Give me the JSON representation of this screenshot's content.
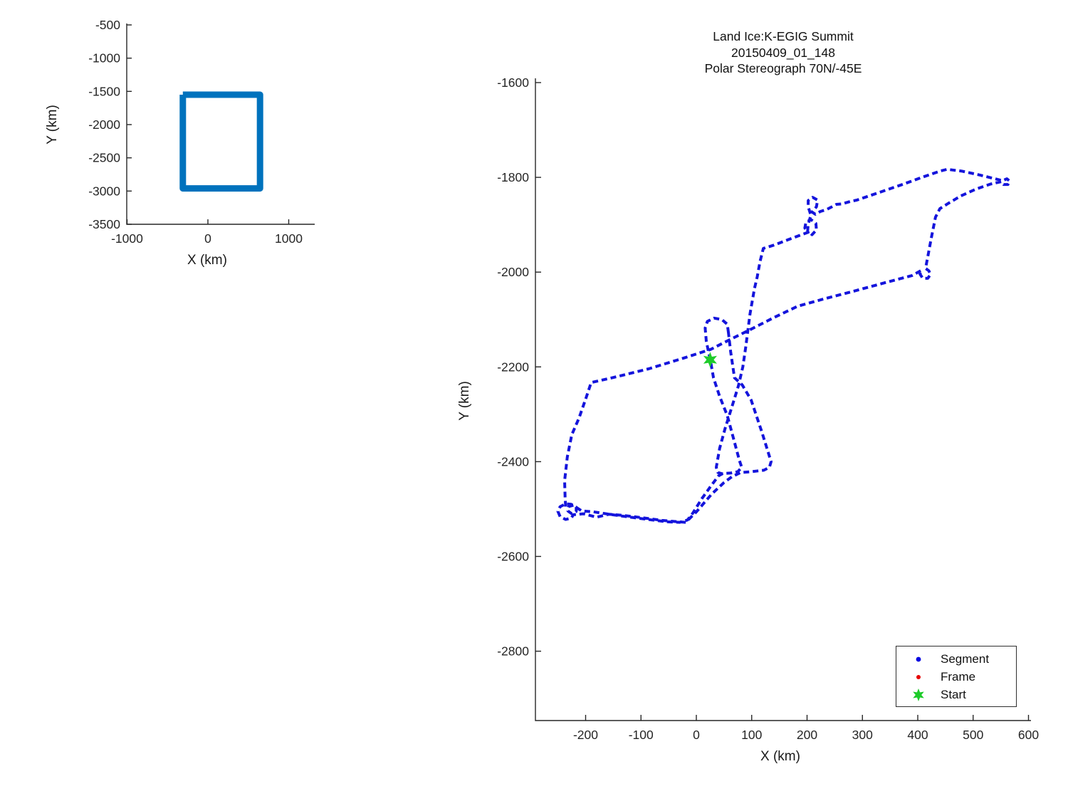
{
  "figure": {
    "background": "#ffffff"
  },
  "chart_data": [
    {
      "type": "line",
      "role": "overview-map",
      "xlabel": "X (km)",
      "ylabel": "Y (km)",
      "xticks": [
        -1000,
        0,
        1000
      ],
      "yticks": [
        -500,
        -1000,
        -1500,
        -2000,
        -2500,
        -3000,
        -3500
      ],
      "xlim": [
        -1010,
        1320
      ],
      "ylim": [
        -3500,
        -500
      ],
      "grid": false,
      "series": [
        {
          "name": "flight-region-outline",
          "color": "#0072BD",
          "linewidth": 9,
          "dash": "none",
          "points": [
            [
              -310,
              -1550
            ],
            [
              645,
              -1550
            ],
            [
              645,
              -2960
            ],
            [
              -310,
              -2960
            ],
            [
              -310,
              -1550
            ]
          ]
        }
      ]
    },
    {
      "type": "line",
      "role": "flight-track",
      "title_lines": [
        "Land Ice:K-EGIG Summit",
        "20150409_01_148",
        "Polar Stereograph 70N/-45E"
      ],
      "xlabel": "X (km)",
      "ylabel": "Y (km)",
      "xticks": [
        -200,
        -100,
        0,
        100,
        200,
        300,
        400,
        500,
        600
      ],
      "yticks": [
        -1600,
        -1800,
        -2000,
        -2200,
        -2400,
        -2600,
        -2800
      ],
      "xlim": [
        -291,
        605
      ],
      "ylim": [
        -2947,
        -1591
      ],
      "grid": false,
      "legend": {
        "position": "lower right",
        "entries": [
          {
            "label": "Segment",
            "marker": "dot",
            "color": "#0000e1"
          },
          {
            "label": "Frame",
            "marker": "dot",
            "color": "#e60000"
          },
          {
            "label": "Start",
            "marker": "hexagram",
            "color": "#1ecb2a"
          }
        ]
      },
      "start_point": [
        25,
        -2185
      ],
      "track_color": "#1414dc",
      "series": [
        {
          "name": "segment-track-survey-and-southwest-loop",
          "color": "#1414dc",
          "linewidth": 4,
          "dash": "8 5",
          "points": [
            [
              58,
              -2128
            ],
            [
              56,
              -2110
            ],
            [
              46,
              -2100
            ],
            [
              32,
              -2097
            ],
            [
              20,
              -2104
            ],
            [
              16,
              -2118
            ],
            [
              18,
              -2146
            ],
            [
              22,
              -2168
            ],
            [
              26,
              -2190
            ],
            [
              31,
              -2223
            ],
            [
              42,
              -2262
            ],
            [
              56,
              -2303
            ],
            [
              68,
              -2355
            ],
            [
              78,
              -2398
            ],
            [
              82,
              -2412
            ],
            [
              75,
              -2421
            ],
            [
              62,
              -2424
            ],
            [
              48,
              -2425
            ],
            [
              40,
              -2430
            ],
            [
              26,
              -2452
            ],
            [
              10,
              -2478
            ],
            [
              -6,
              -2508
            ],
            [
              -16,
              -2523
            ],
            [
              -30,
              -2528
            ],
            [
              -52,
              -2527
            ],
            [
              -80,
              -2523
            ],
            [
              -114,
              -2518
            ],
            [
              -152,
              -2512
            ],
            [
              -186,
              -2506
            ],
            [
              -207,
              -2504
            ],
            [
              -215,
              -2498
            ],
            [
              -222,
              -2492
            ],
            [
              -231,
              -2495
            ],
            [
              -232,
              -2504
            ],
            [
              -225,
              -2510
            ],
            [
              -217,
              -2505
            ],
            [
              -217,
              -2496
            ],
            [
              -226,
              -2490
            ],
            [
              -236,
              -2489
            ],
            [
              -246,
              -2495
            ],
            [
              -250,
              -2505
            ],
            [
              -246,
              -2516
            ],
            [
              -236,
              -2522
            ],
            [
              -226,
              -2519
            ],
            [
              -222,
              -2512
            ],
            [
              -204,
              -2510
            ],
            [
              -180,
              -2517
            ],
            [
              -158,
              -2511
            ],
            [
              -136,
              -2513
            ],
            [
              -100,
              -2518
            ],
            [
              -62,
              -2524
            ],
            [
              -32,
              -2527
            ],
            [
              -19,
              -2528
            ],
            [
              0,
              -2506
            ],
            [
              28,
              -2468
            ],
            [
              50,
              -2444
            ],
            [
              64,
              -2432
            ],
            [
              80,
              -2423
            ],
            [
              100,
              -2421
            ],
            [
              122,
              -2418
            ],
            [
              132,
              -2412
            ],
            [
              135,
              -2400
            ],
            [
              118,
              -2336
            ],
            [
              99,
              -2270
            ],
            [
              83,
              -2238
            ],
            [
              69,
              -2223
            ],
            [
              62,
              -2168
            ],
            [
              58,
              -2128
            ]
          ]
        },
        {
          "name": "segment-track-northeast-excursion",
          "color": "#1414dc",
          "linewidth": 4,
          "dash": "8 5",
          "points": [
            [
              48,
              -2426
            ],
            [
              39,
              -2423
            ],
            [
              36,
              -2412
            ],
            [
              42,
              -2372
            ],
            [
              52,
              -2330
            ],
            [
              64,
              -2285
            ],
            [
              76,
              -2240
            ],
            [
              84,
              -2200
            ],
            [
              89,
              -2160
            ],
            [
              97,
              -2088
            ],
            [
              105,
              -2035
            ],
            [
              110,
              -2010
            ],
            [
              115,
              -1978
            ],
            [
              121,
              -1950
            ],
            [
              140,
              -1943
            ],
            [
              165,
              -1932
            ],
            [
              190,
              -1921
            ],
            [
              202,
              -1916
            ],
            [
              196,
              -1907
            ],
            [
              198,
              -1895
            ],
            [
              207,
              -1889
            ],
            [
              216,
              -1897
            ],
            [
              217,
              -1911
            ],
            [
              209,
              -1921
            ],
            [
              201,
              -1913
            ],
            [
              202,
              -1899
            ],
            [
              207,
              -1880
            ],
            [
              202,
              -1862
            ],
            [
              202,
              -1849
            ],
            [
              210,
              -1842
            ],
            [
              219,
              -1848
            ],
            [
              217,
              -1862
            ],
            [
              209,
              -1873
            ],
            [
              215,
              -1878
            ],
            [
              224,
              -1872
            ],
            [
              235,
              -1868
            ],
            [
              245,
              -1862
            ],
            [
              253,
              -1857
            ],
            [
              263,
              -1856
            ],
            [
              278,
              -1851
            ],
            [
              290,
              -1848
            ],
            [
              330,
              -1832
            ],
            [
              370,
              -1816
            ],
            [
              410,
              -1799
            ],
            [
              440,
              -1787
            ],
            [
              453,
              -1783
            ],
            [
              480,
              -1787
            ],
            [
              512,
              -1795
            ],
            [
              536,
              -1802
            ],
            [
              553,
              -1807
            ],
            [
              561,
              -1803
            ],
            [
              566,
              -1808
            ],
            [
              563,
              -1815
            ],
            [
              555,
              -1815
            ],
            [
              551,
              -1809
            ],
            [
              532,
              -1814
            ],
            [
              505,
              -1825
            ],
            [
              478,
              -1839
            ],
            [
              455,
              -1855
            ],
            [
              440,
              -1866
            ],
            [
              432,
              -1884
            ],
            [
              425,
              -1925
            ],
            [
              418,
              -1968
            ],
            [
              414,
              -1992
            ],
            [
              420,
              -1997
            ],
            [
              423,
              -2005
            ],
            [
              418,
              -2013
            ],
            [
              409,
              -2013
            ],
            [
              404,
              -2004
            ],
            [
              407,
              -1996
            ],
            [
              390,
              -2007
            ],
            [
              345,
              -2021
            ],
            [
              285,
              -2040
            ],
            [
              232,
              -2056
            ],
            [
              183,
              -2072
            ],
            [
              140,
              -2096
            ],
            [
              98,
              -2121
            ],
            [
              58,
              -2144
            ],
            [
              26,
              -2163
            ],
            [
              -22,
              -2181
            ],
            [
              -86,
              -2204
            ],
            [
              -152,
              -2223
            ],
            [
              -190,
              -2233
            ],
            [
              -200,
              -2268
            ],
            [
              -212,
              -2308
            ],
            [
              -225,
              -2343
            ],
            [
              -233,
              -2390
            ],
            [
              -238,
              -2440
            ],
            [
              -237,
              -2476
            ],
            [
              -236,
              -2496
            ]
          ]
        }
      ]
    }
  ]
}
